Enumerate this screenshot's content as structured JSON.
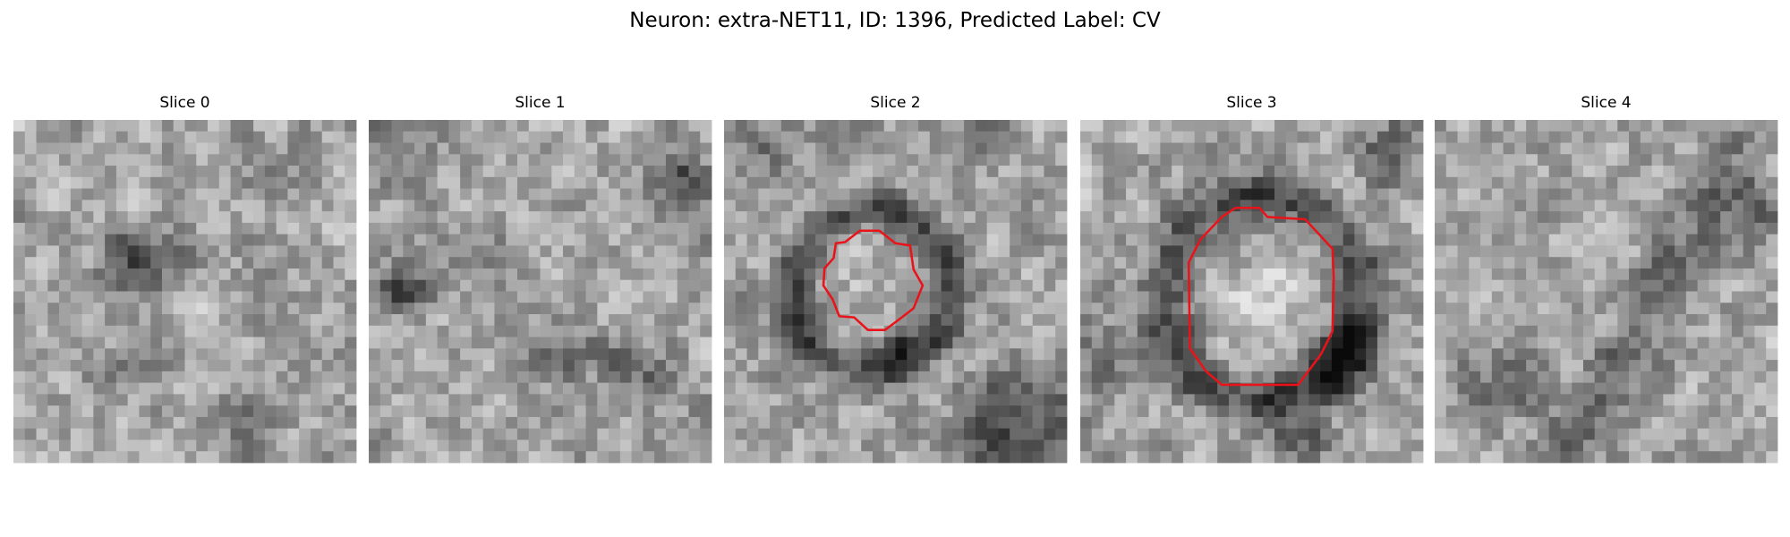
{
  "header": {
    "title": "Neuron: extra-NET11, ID: 1396, Predicted Label: CV"
  },
  "panels": [
    {
      "title": "Slice 0"
    },
    {
      "title": "Slice 1"
    },
    {
      "title": "Slice 2"
    },
    {
      "title": "Slice 3"
    },
    {
      "title": "Slice 4"
    }
  ]
}
